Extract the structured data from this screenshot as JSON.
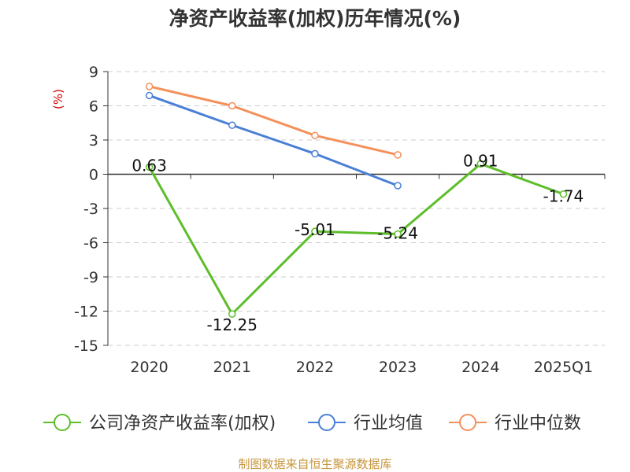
{
  "chart_data": {
    "type": "line",
    "title": "净资产收益率(加权)历年情况(%)",
    "ylabel": "(%)",
    "categories": [
      "2020",
      "2021",
      "2022",
      "2023",
      "2024",
      "2025Q1"
    ],
    "ylim": [
      -15,
      9
    ],
    "yticks": [
      9,
      6,
      3,
      0,
      -3,
      -6,
      -9,
      -12,
      -15
    ],
    "grid": true,
    "legend_position": "bottom",
    "series": [
      {
        "name": "公司净资产收益率(加权)",
        "color": "#5dbe2a",
        "values": [
          0.63,
          -12.25,
          -5.01,
          -5.24,
          0.91,
          -1.74
        ],
        "labels": [
          "0.63",
          "-12.25",
          "-5.01",
          "-5.24",
          "0.91",
          "-1.74"
        ]
      },
      {
        "name": "行业均值",
        "color": "#4a7fd6",
        "values": [
          6.9,
          4.3,
          1.8,
          -1.0,
          null,
          null
        ]
      },
      {
        "name": "行业中位数",
        "color": "#f4905a",
        "values": [
          7.7,
          6.0,
          3.4,
          1.7,
          null,
          null
        ]
      }
    ],
    "source": "制图数据来自恒生聚源数据库"
  }
}
